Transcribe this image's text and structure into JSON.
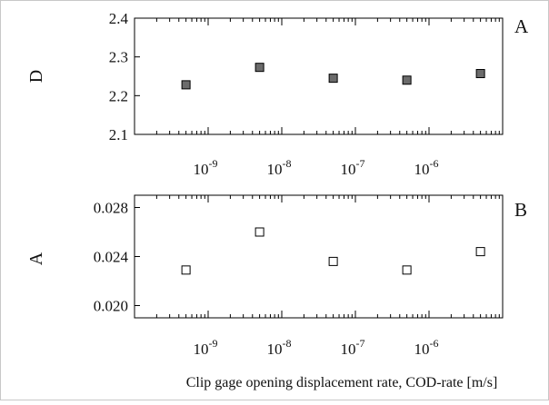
{
  "chart_data": [
    {
      "type": "scatter",
      "panel_label": "A",
      "ylabel": "D",
      "xlabel": "",
      "x_scale": "log",
      "xlim": [
        1e-10,
        1e-05
      ],
      "ylim": [
        2.1,
        2.4
      ],
      "y_ticks": [
        "2.1",
        "2.2",
        "2.3",
        "2.4"
      ],
      "x_tick_labels": [
        {
          "base": "10",
          "exp": "-9"
        },
        {
          "base": "10",
          "exp": "-8"
        },
        {
          "base": "10",
          "exp": "-7"
        },
        {
          "base": "10",
          "exp": "-6"
        }
      ],
      "marker": "filled-square",
      "marker_color": "#6b6b6b",
      "points": [
        {
          "x": 5e-10,
          "y": 2.228
        },
        {
          "x": 5e-09,
          "y": 2.273
        },
        {
          "x": 5e-08,
          "y": 2.245
        },
        {
          "x": 5e-07,
          "y": 2.24
        },
        {
          "x": 5e-06,
          "y": 2.257
        }
      ]
    },
    {
      "type": "scatter",
      "panel_label": "B",
      "ylabel": "A",
      "xlabel": "Clip gage opening displacement rate, COD-rate [m/s]",
      "x_scale": "log",
      "xlim": [
        1e-10,
        1e-05
      ],
      "ylim": [
        0.019,
        0.029
      ],
      "y_ticks": [
        "0.020",
        "0.024",
        "0.028"
      ],
      "x_tick_labels": [
        {
          "base": "10",
          "exp": "-9"
        },
        {
          "base": "10",
          "exp": "-8"
        },
        {
          "base": "10",
          "exp": "-7"
        },
        {
          "base": "10",
          "exp": "-6"
        }
      ],
      "marker": "open-square",
      "marker_color": "#ffffff",
      "points": [
        {
          "x": 5e-10,
          "y": 0.0229
        },
        {
          "x": 5e-09,
          "y": 0.026
        },
        {
          "x": 5e-08,
          "y": 0.0236
        },
        {
          "x": 5e-07,
          "y": 0.0229
        },
        {
          "x": 5e-06,
          "y": 0.0244
        }
      ]
    }
  ]
}
